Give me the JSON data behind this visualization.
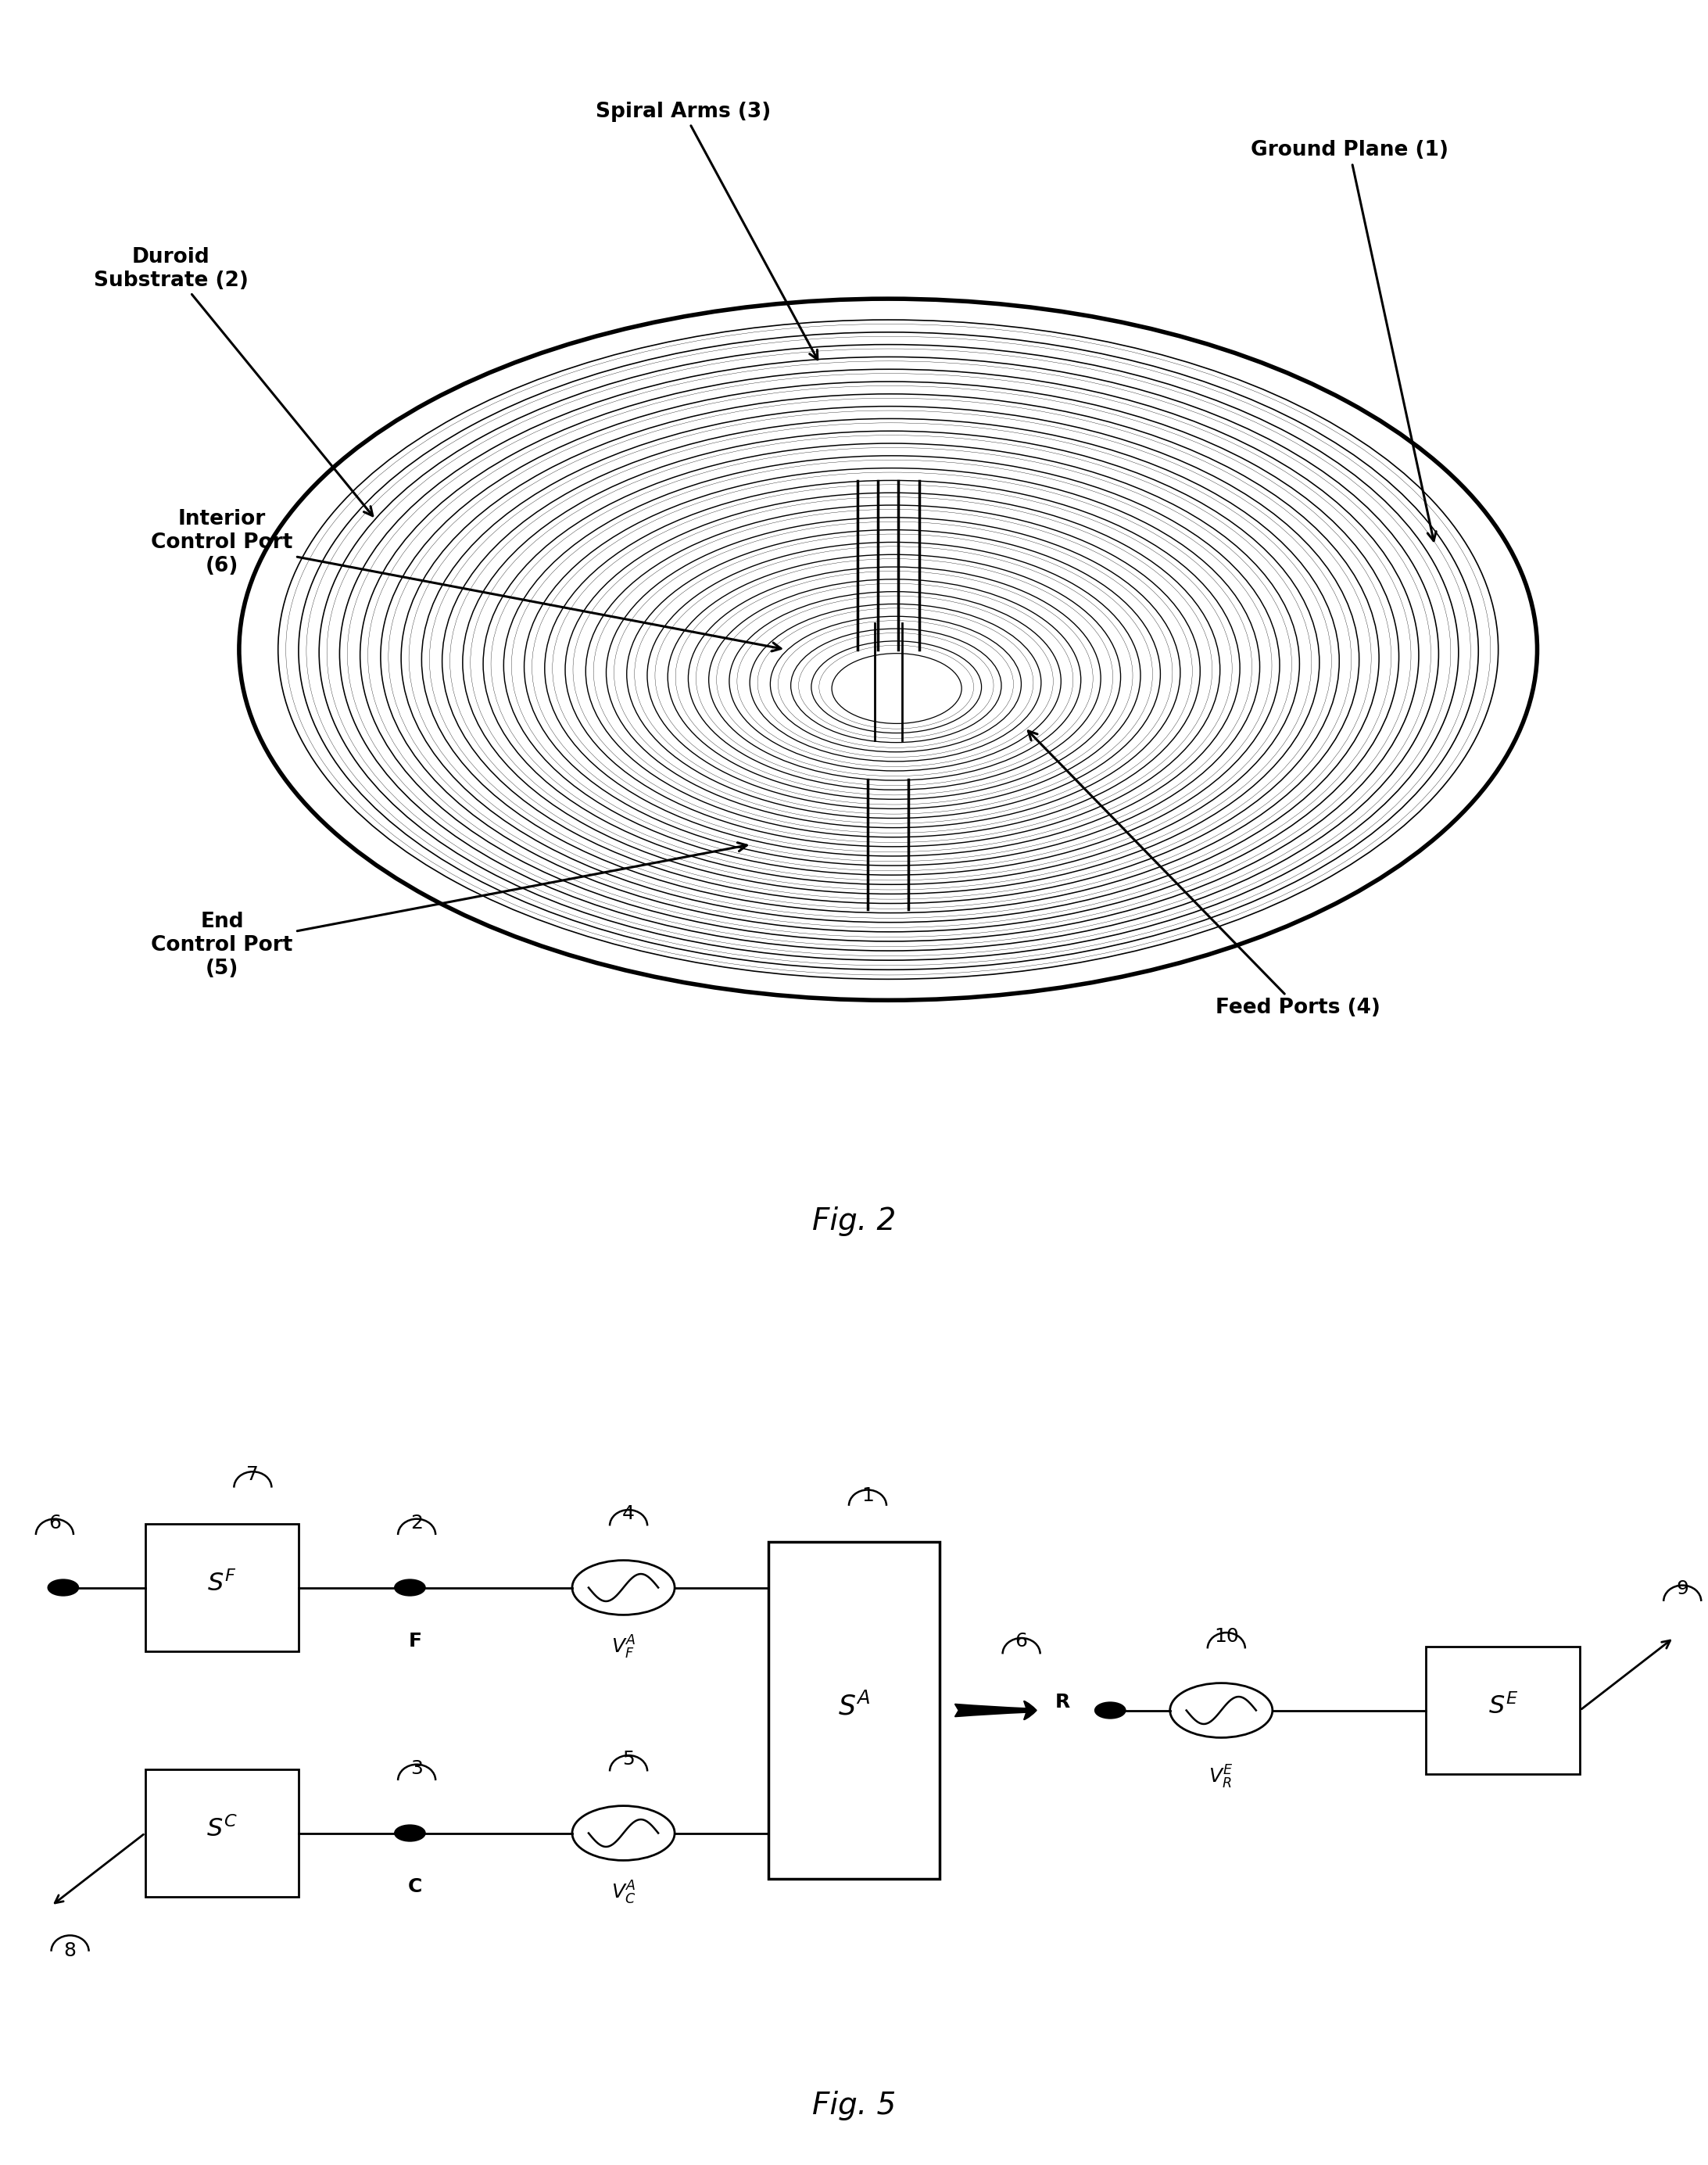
{
  "fig2": {
    "title": "Fig. 2",
    "labels": {
      "spiral_arms": "Spiral Arms (3)",
      "ground_plane": "Ground Plane (1)",
      "duroid_substrate": "Duroid\nSubstrate (2)",
      "interior_control_port": "Interior\nControl Port\n(6)",
      "end_control_port": "End\nControl Port\n(5)",
      "feed_ports": "Feed Ports (4)"
    }
  },
  "fig5": {
    "title": "Fig. 5"
  },
  "background_color": "#ffffff",
  "line_color": "#000000",
  "text_color": "#000000"
}
